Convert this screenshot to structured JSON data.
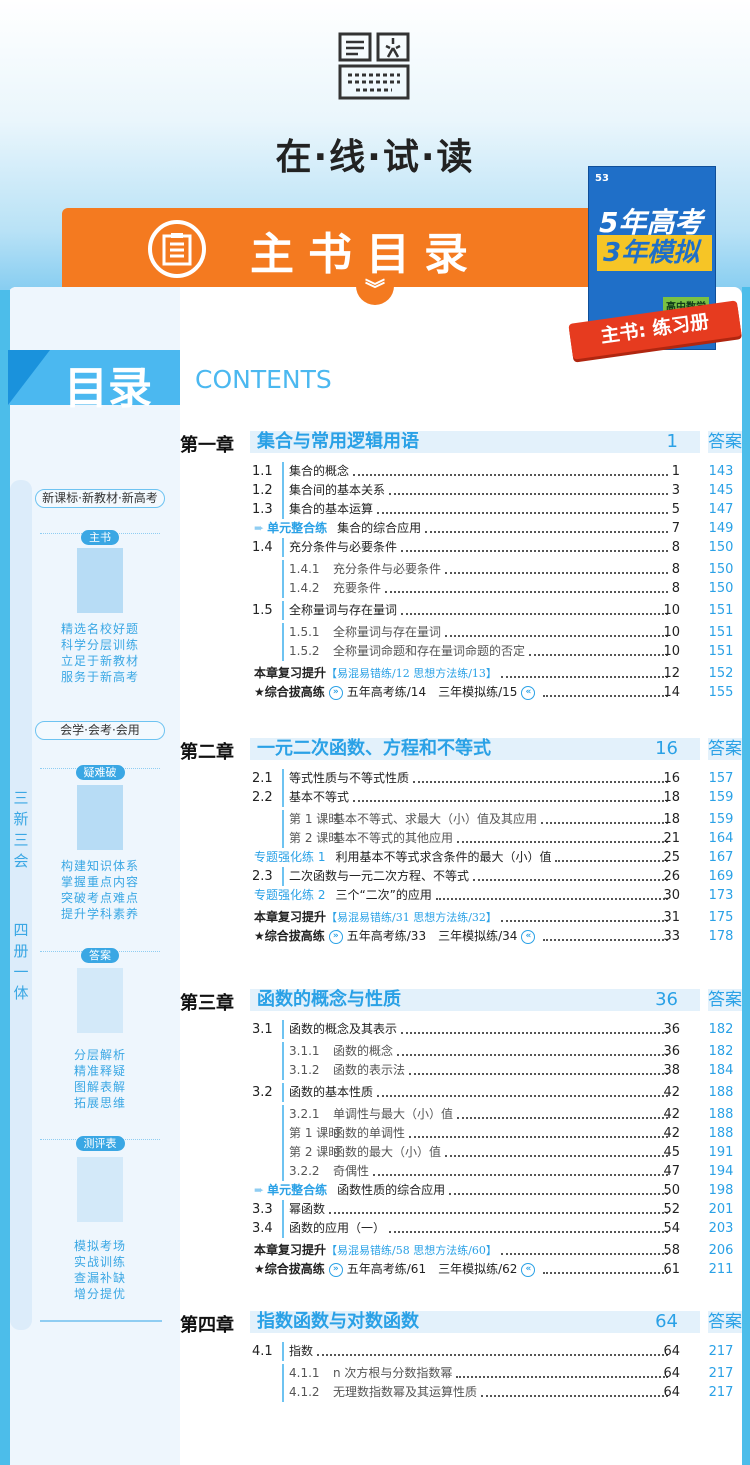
{
  "header": {
    "title": "在·线·试·读",
    "icon": "book-keyboard-icon"
  },
  "banner": {
    "title": "主书目录",
    "icon": "document-list-icon",
    "chevron": "double-chevron-down-icon"
  },
  "book_cover": {
    "logo": "53",
    "title_line1": "5年高考",
    "title_line2": "3年模拟",
    "subject": "高中数学",
    "ribbon": "主书: 练习册"
  },
  "toc_heading": {
    "cn": "目录",
    "en": "CONTENTS"
  },
  "sidebar": {
    "vertical_1": "三新三会",
    "vertical_2": "四册一体",
    "pill_1": "新课标·新教材·新高考",
    "pill_2": "会学·会考·会用",
    "sections": [
      {
        "label": "主书",
        "lines": [
          "精选名校好题",
          "科学分层训练",
          "立足于新教材",
          "服务于新高考"
        ]
      },
      {
        "label": "疑难破",
        "lines": [
          "构建知识体系",
          "掌握重点内容",
          "突破考点难点",
          "提升学科素养"
        ]
      },
      {
        "label": "答案",
        "lines": [
          "分层解析",
          "精准释疑",
          "图解表解",
          "拓展思维"
        ]
      },
      {
        "label": "测评表",
        "lines": [
          "模拟考场",
          "实战训练",
          "查漏补缺",
          "增分提优"
        ]
      }
    ]
  },
  "colors": {
    "accent": "#2aa1e6",
    "orange": "#f47a20",
    "ribbon": "#e63b1f"
  },
  "chapters": [
    {
      "name": "第一章",
      "title": "集合与常用逻辑用语",
      "page": "1",
      "answer_label": "答案",
      "rows": [
        {
          "type": "section",
          "num": "1.1",
          "title": "集合的概念",
          "page": "1",
          "answer": "143"
        },
        {
          "type": "section",
          "num": "1.2",
          "title": "集合间的基本关系",
          "page": "3",
          "answer": "145"
        },
        {
          "type": "section",
          "num": "1.3",
          "title": "集合的基本运算",
          "page": "5",
          "answer": "147"
        },
        {
          "type": "unit",
          "label": "单元整合练",
          "title": "集合的综合应用",
          "page": "7",
          "answer": "149"
        },
        {
          "type": "section",
          "num": "1.4",
          "title": "充分条件与必要条件",
          "page": "8",
          "answer": "150"
        },
        {
          "type": "sub",
          "num": "1.4.1",
          "title": "充分条件与必要条件",
          "page": "8",
          "answer": "150"
        },
        {
          "type": "sub",
          "num": "1.4.2",
          "title": "充要条件",
          "page": "8",
          "answer": "150"
        },
        {
          "type": "section",
          "num": "1.5",
          "title": "全称量词与存在量词",
          "page": "10",
          "answer": "151"
        },
        {
          "type": "sub",
          "num": "1.5.1",
          "title": "全称量词与存在量词",
          "page": "10",
          "answer": "151"
        },
        {
          "type": "sub",
          "num": "1.5.2",
          "title": "全称量词命题和存在量词命题的否定",
          "page": "10",
          "answer": "151"
        },
        {
          "type": "review",
          "label": "本章复习提升",
          "bracket": "【易混易错练/12 思想方法练/13】",
          "page": "12",
          "answer": "152"
        },
        {
          "type": "comp",
          "label": "★综合拔高练",
          "a": "五年高考练/14",
          "b": "三年模拟练/15",
          "page": "14",
          "answer": "155"
        }
      ]
    },
    {
      "name": "第二章",
      "title": "一元二次函数、方程和不等式",
      "page": "16",
      "answer_label": "答案",
      "rows": [
        {
          "type": "section",
          "num": "2.1",
          "title": "等式性质与不等式性质",
          "page": "16",
          "answer": "157"
        },
        {
          "type": "section",
          "num": "2.2",
          "title": "基本不等式",
          "page": "18",
          "answer": "159"
        },
        {
          "type": "sub",
          "num": "第 1 课时",
          "title": "基本不等式、求最大（小）值及其应用",
          "page": "18",
          "answer": "159"
        },
        {
          "type": "sub",
          "num": "第 2 课时",
          "title": "基本不等式的其他应用",
          "page": "21",
          "answer": "164"
        },
        {
          "type": "special",
          "label": "专题强化练 1",
          "title": "利用基本不等式求含条件的最大（小）值",
          "page": "25",
          "answer": "167"
        },
        {
          "type": "section",
          "num": "2.3",
          "title": "二次函数与一元二次方程、不等式",
          "page": "26",
          "answer": "169"
        },
        {
          "type": "special",
          "label": "专题强化练 2",
          "title": "三个“二次”的应用",
          "page": "30",
          "answer": "173"
        },
        {
          "type": "review",
          "label": "本章复习提升",
          "bracket": "【易混易错练/31 思想方法练/32】",
          "page": "31",
          "answer": "175"
        },
        {
          "type": "comp",
          "label": "★综合拔高练",
          "a": "五年高考练/33",
          "b": "三年模拟练/34",
          "page": "33",
          "answer": "178"
        }
      ]
    },
    {
      "name": "第三章",
      "title": "函数的概念与性质",
      "page": "36",
      "answer_label": "答案",
      "rows": [
        {
          "type": "section",
          "num": "3.1",
          "title": "函数的概念及其表示",
          "page": "36",
          "answer": "182"
        },
        {
          "type": "sub",
          "num": "3.1.1",
          "title": "函数的概念",
          "page": "36",
          "answer": "182"
        },
        {
          "type": "sub",
          "num": "3.1.2",
          "title": "函数的表示法",
          "page": "38",
          "answer": "184"
        },
        {
          "type": "section",
          "num": "3.2",
          "title": "函数的基本性质",
          "page": "42",
          "answer": "188"
        },
        {
          "type": "sub",
          "num": "3.2.1",
          "title": "单调性与最大（小）值",
          "page": "42",
          "answer": "188"
        },
        {
          "type": "sub",
          "num": "第 1 课时",
          "title": "函数的单调性",
          "page": "42",
          "answer": "188"
        },
        {
          "type": "sub",
          "num": "第 2 课时",
          "title": "函数的最大（小）值",
          "page": "45",
          "answer": "191"
        },
        {
          "type": "sub",
          "num": "3.2.2",
          "title": "奇偶性",
          "page": "47",
          "answer": "194"
        },
        {
          "type": "unit",
          "label": "单元整合练",
          "title": "函数性质的综合应用",
          "page": "50",
          "answer": "198"
        },
        {
          "type": "section",
          "num": "3.3",
          "title": "幂函数",
          "page": "52",
          "answer": "201"
        },
        {
          "type": "section",
          "num": "3.4",
          "title": "函数的应用（一）",
          "page": "54",
          "answer": "203"
        },
        {
          "type": "review",
          "label": "本章复习提升",
          "bracket": "【易混易错练/58 思想方法练/60】",
          "page": "58",
          "answer": "206"
        },
        {
          "type": "comp",
          "label": "★综合拔高练",
          "a": "五年高考练/61",
          "b": "三年模拟练/62",
          "page": "61",
          "answer": "211"
        }
      ]
    },
    {
      "name": "第四章",
      "title": "指数函数与对数函数",
      "page": "64",
      "answer_label": "答案",
      "rows": [
        {
          "type": "section",
          "num": "4.1",
          "title": "指数",
          "page": "64",
          "answer": "217"
        },
        {
          "type": "sub",
          "num": "4.1.1",
          "title": "n 次方根与分数指数幂",
          "page": "64",
          "answer": "217"
        },
        {
          "type": "sub",
          "num": "4.1.2",
          "title": "无理数指数幂及其运算性质",
          "page": "64",
          "answer": "217"
        }
      ]
    }
  ]
}
